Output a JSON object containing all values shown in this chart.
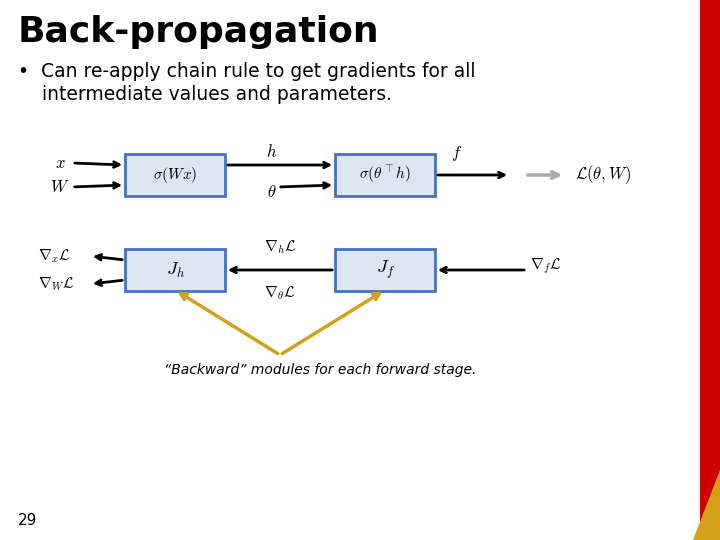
{
  "title": "Back-propagation",
  "bullet_line1": "•  Can re-apply chain rule to get gradients for all",
  "bullet_line2": "    intermediate values and parameters.",
  "slide_bg": "#ffffff",
  "title_color": "#000000",
  "bullet_color": "#000000",
  "box_facecolor": "#dce6f1",
  "box_edgecolor": "#4472c4",
  "arrow_color": "#000000",
  "arrow_gray": "#aaaaaa",
  "arrow_gold": "#d4a017",
  "page_number": "29",
  "red_bar_color": "#cc0000",
  "gold_corner_color": "#d4a017",
  "caption": "“Backward” modules for each forward stage."
}
